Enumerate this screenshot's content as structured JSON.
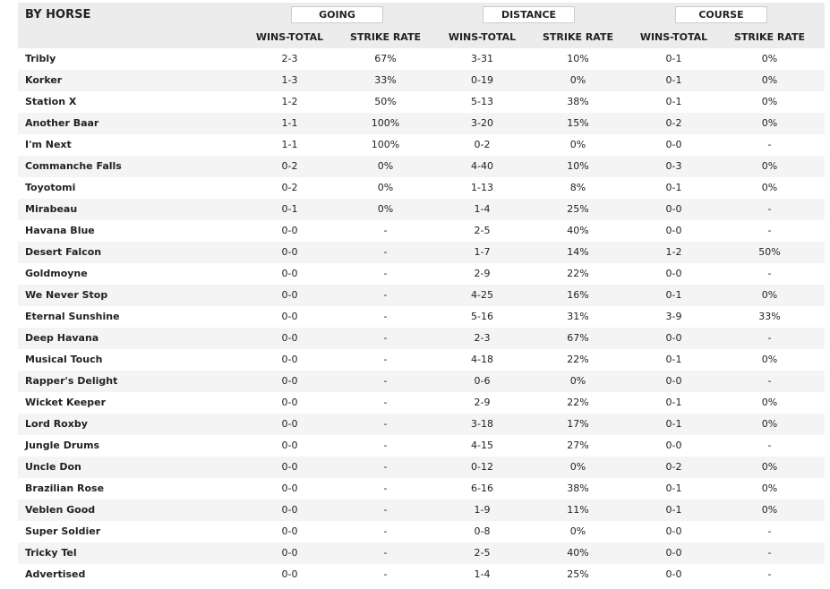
{
  "header": {
    "title": "BY HORSE",
    "groups": [
      "GOING",
      "DISTANCE",
      "COURSE"
    ],
    "columns": [
      "WINS-TOTAL",
      "STRIKE RATE",
      "WINS-TOTAL",
      "STRIKE RATE",
      "WINS-TOTAL",
      "STRIKE RATE"
    ]
  },
  "table": {
    "rows": [
      [
        "Tribly",
        "2-3",
        "67%",
        "3-31",
        "10%",
        "0-1",
        "0%"
      ],
      [
        "Korker",
        "1-3",
        "33%",
        "0-19",
        "0%",
        "0-1",
        "0%"
      ],
      [
        "Station X",
        "1-2",
        "50%",
        "5-13",
        "38%",
        "0-1",
        "0%"
      ],
      [
        "Another Baar",
        "1-1",
        "100%",
        "3-20",
        "15%",
        "0-2",
        "0%"
      ],
      [
        "I'm Next",
        "1-1",
        "100%",
        "0-2",
        "0%",
        "0-0",
        "-"
      ],
      [
        "Commanche Falls",
        "0-2",
        "0%",
        "4-40",
        "10%",
        "0-3",
        "0%"
      ],
      [
        "Toyotomi",
        "0-2",
        "0%",
        "1-13",
        "8%",
        "0-1",
        "0%"
      ],
      [
        "Mirabeau",
        "0-1",
        "0%",
        "1-4",
        "25%",
        "0-0",
        "-"
      ],
      [
        "Havana Blue",
        "0-0",
        "-",
        "2-5",
        "40%",
        "0-0",
        "-"
      ],
      [
        "Desert Falcon",
        "0-0",
        "-",
        "1-7",
        "14%",
        "1-2",
        "50%"
      ],
      [
        "Goldmoyne",
        "0-0",
        "-",
        "2-9",
        "22%",
        "0-0",
        "-"
      ],
      [
        "We Never Stop",
        "0-0",
        "-",
        "4-25",
        "16%",
        "0-1",
        "0%"
      ],
      [
        "Eternal Sunshine",
        "0-0",
        "-",
        "5-16",
        "31%",
        "3-9",
        "33%"
      ],
      [
        "Deep Havana",
        "0-0",
        "-",
        "2-3",
        "67%",
        "0-0",
        "-"
      ],
      [
        "Musical Touch",
        "0-0",
        "-",
        "4-18",
        "22%",
        "0-1",
        "0%"
      ],
      [
        "Rapper's Delight",
        "0-0",
        "-",
        "0-6",
        "0%",
        "0-0",
        "-"
      ],
      [
        "Wicket Keeper",
        "0-0",
        "-",
        "2-9",
        "22%",
        "0-1",
        "0%"
      ],
      [
        "Lord Roxby",
        "0-0",
        "-",
        "3-18",
        "17%",
        "0-1",
        "0%"
      ],
      [
        "Jungle Drums",
        "0-0",
        "-",
        "4-15",
        "27%",
        "0-0",
        "-"
      ],
      [
        "Uncle Don",
        "0-0",
        "-",
        "0-12",
        "0%",
        "0-2",
        "0%"
      ],
      [
        "Brazilian Rose",
        "0-0",
        "-",
        "6-16",
        "38%",
        "0-1",
        "0%"
      ],
      [
        "Veblen Good",
        "0-0",
        "-",
        "1-9",
        "11%",
        "0-1",
        "0%"
      ],
      [
        "Super Soldier",
        "0-0",
        "-",
        "0-8",
        "0%",
        "0-0",
        "-"
      ],
      [
        "Tricky Tel",
        "0-0",
        "-",
        "2-5",
        "40%",
        "0-0",
        "-"
      ],
      [
        "Advertised",
        "0-0",
        "-",
        "1-4",
        "25%",
        "0-0",
        "-"
      ]
    ]
  }
}
